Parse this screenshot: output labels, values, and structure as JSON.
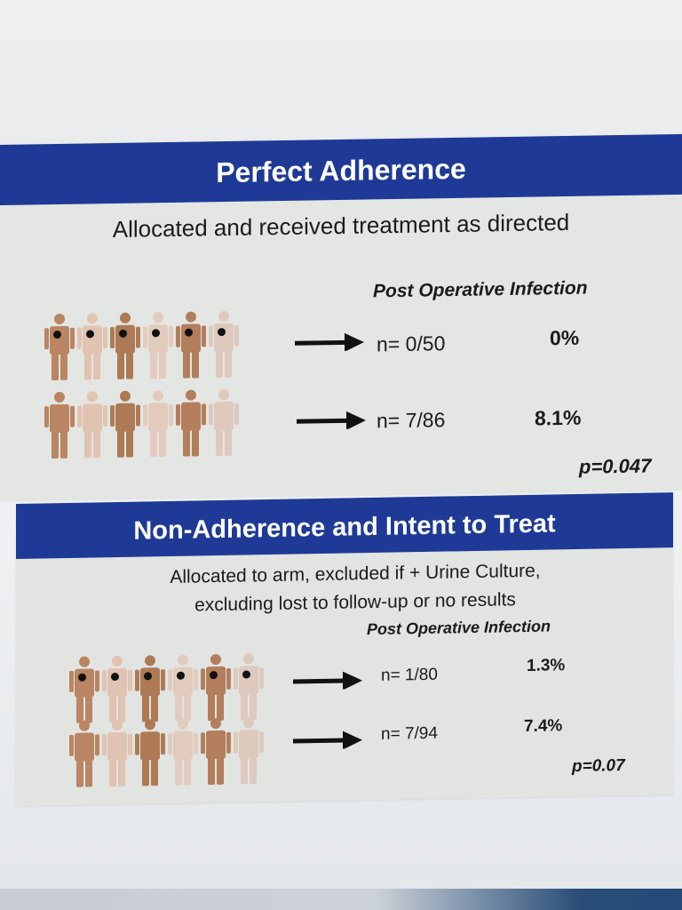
{
  "section1": {
    "title": "Perfect Adherence",
    "subtitle": "Allocated and received treatment as directed",
    "column_header": "Post Operative Infection",
    "rows": [
      {
        "n": "n= 0/50",
        "percent": "0%",
        "marked": true
      },
      {
        "n": "n= 7/86",
        "percent": "8.1%",
        "marked": false
      }
    ],
    "p_value": "p=0.047"
  },
  "section2": {
    "title": "Non-Adherence and Intent to Treat",
    "subtitle_line1": "Allocated to arm, excluded if + Urine Culture,",
    "subtitle_line2": "excluding lost to follow-up or no results",
    "column_header": "Post Operative Infection",
    "rows": [
      {
        "n": "n= 1/80",
        "percent": "1.3%",
        "marked": true
      },
      {
        "n": "n= 7/94",
        "percent": "7.4%",
        "marked": false
      }
    ],
    "p_value": "p=0.07"
  },
  "colors": {
    "banner": "#1e3a96",
    "panel": "#e4e6e3",
    "skin_tones": [
      "#b98563",
      "#e0c3b1",
      "#ad7a55",
      "#e2cbbd",
      "#b27e5c",
      "#ddc9bd"
    ]
  },
  "icons": {
    "person": "person-icon",
    "arrow": "arrow-right-icon"
  }
}
